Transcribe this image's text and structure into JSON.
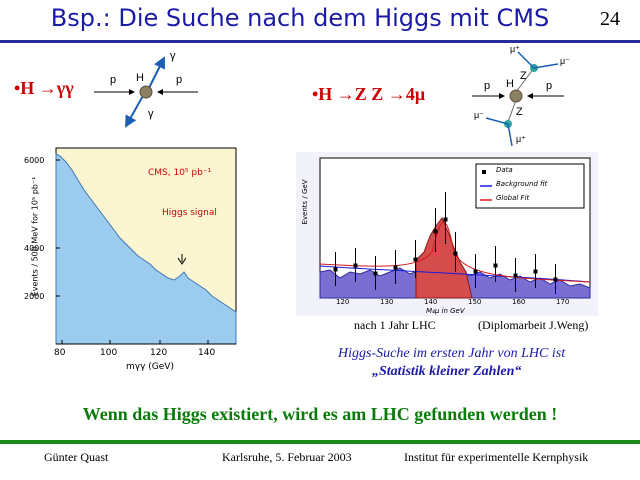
{
  "slide": {
    "title": "Bsp.: Die Suche nach dem Higgs mit CMS",
    "page_number": "24"
  },
  "left_panel": {
    "process_label": "•H  →γγ",
    "feynman": {
      "p_left": "p",
      "h": "H",
      "p_right": "p",
      "gamma_top": "γ",
      "gamma_bottom": "γ"
    },
    "plot": {
      "ylabel": "Events / 500 MeV  for 10⁵ pb⁻¹",
      "xlabel": "mγγ (GeV)",
      "legend_cms": "CMS, 10⁵ pb⁻¹",
      "legend_signal": "Higgs signal",
      "yticks": [
        "2000",
        "4000",
        "6000"
      ],
      "xticks": [
        "80",
        "100",
        "120",
        "140"
      ]
    }
  },
  "right_panel": {
    "process_label": "•H  →Z Z →4μ",
    "feynman": {
      "p_left": "p",
      "h": "H",
      "p_right": "p",
      "z_top": "Z",
      "z_bottom": "Z",
      "mu1": "μ⁺",
      "mu2": "μ⁻",
      "mu3": "μ⁻",
      "mu4": "μ⁺"
    },
    "plot": {
      "ylabel": "Events / GeV",
      "xlabel": "M₄μ in GeV",
      "legend": [
        "Data",
        "Background fit",
        "Global Fit"
      ],
      "xticks": [
        "120",
        "130",
        "140",
        "150",
        "160",
        "170"
      ]
    },
    "caption_left": "nach 1 Jahr LHC",
    "caption_right": "(Diplomarbeit J.Weng)",
    "note_line1": "Higgs-Suche im ersten Jahr von LHC ist",
    "note_line2": "„Statistik kleiner Zahlen“"
  },
  "conclusion": "Wenn das Higgs existiert, wird es am LHC gefunden werden !",
  "footer": {
    "author": "Günter Quast",
    "date": "Karlsruhe,  5. Februar 2003",
    "institute": "Institut für experimentelle Kernphysik"
  },
  "colors": {
    "title_blue": "#1a1aa6",
    "conclusion_green": "#0a7a0a",
    "process_red": "#cc0000"
  }
}
